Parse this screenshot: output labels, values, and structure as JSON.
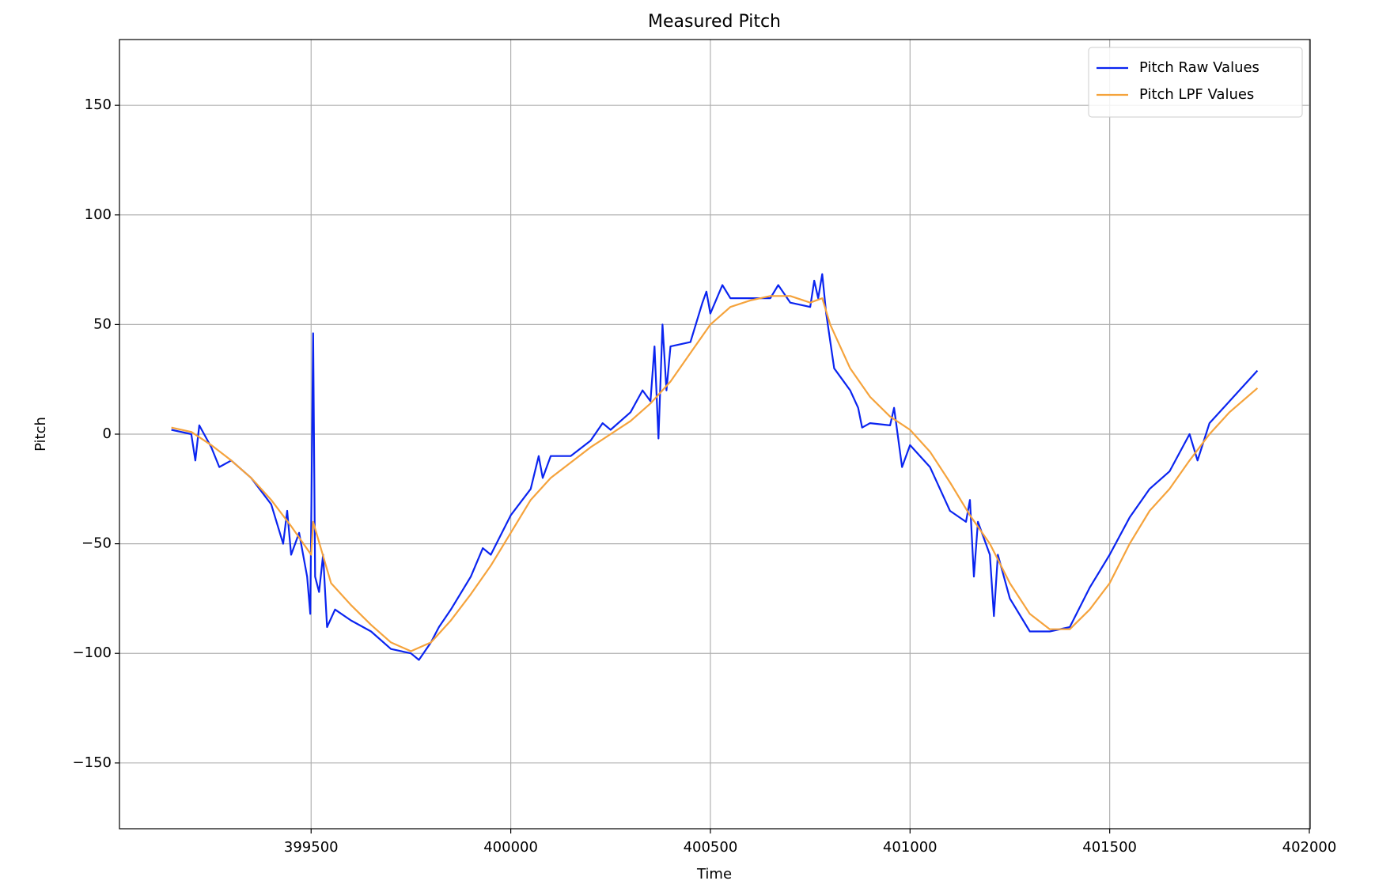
{
  "chart_data": {
    "type": "line",
    "title": "Measured Pitch",
    "x_label": "Time",
    "y_label": "Pitch",
    "xlim": [
      399020,
      402002
    ],
    "ylim": [
      -180,
      180
    ],
    "xticks": [
      399500,
      400000,
      400500,
      401000,
      401500,
      402000
    ],
    "yticks": [
      {
        "value": -150,
        "label": "−150"
      },
      {
        "value": -100,
        "label": "−100"
      },
      {
        "value": -50,
        "label": "−50"
      },
      0,
      50,
      100,
      150
    ],
    "grid": true,
    "legend": "upper right",
    "series": [
      {
        "name": "Pitch Raw Values",
        "color": "#0a24f0",
        "x": [
          399150,
          399200,
          399210,
          399220,
          399250,
          399270,
          399300,
          399350,
          399400,
          399430,
          399440,
          399450,
          399470,
          399490,
          399498,
          399505,
          399510,
          399520,
          399530,
          399540,
          399560,
          399600,
          399650,
          399700,
          399750,
          399770,
          399800,
          399820,
          399850,
          399900,
          399930,
          399950,
          400000,
          400050,
          400070,
          400080,
          400100,
          400150,
          400200,
          400230,
          400250,
          400300,
          400330,
          400350,
          400360,
          400370,
          400380,
          400390,
          400400,
          400450,
          400480,
          400490,
          400500,
          400530,
          400550,
          400600,
          400650,
          400670,
          400700,
          400750,
          400760,
          400770,
          400780,
          400790,
          400810,
          400830,
          400850,
          400870,
          400880,
          400900,
          400950,
          400960,
          400980,
          401000,
          401050,
          401100,
          401140,
          401150,
          401160,
          401170,
          401200,
          401210,
          401220,
          401250,
          401300,
          401350,
          401400,
          401450,
          401500,
          401550,
          401600,
          401650,
          401700,
          401720,
          401750,
          401800,
          401870
        ],
        "values": [
          2,
          0,
          -12,
          4,
          -6,
          -15,
          -12,
          -20,
          -32,
          -50,
          -35,
          -55,
          -45,
          -65,
          -82,
          46,
          -65,
          -72,
          -55,
          -88,
          -80,
          -85,
          -90,
          -98,
          -100,
          -103,
          -95,
          -88,
          -80,
          -65,
          -52,
          -55,
          -37,
          -25,
          -10,
          -20,
          -10,
          -10,
          -3,
          5,
          2,
          10,
          20,
          15,
          40,
          -2,
          50,
          20,
          40,
          42,
          60,
          65,
          55,
          68,
          62,
          62,
          62,
          68,
          60,
          58,
          70,
          62,
          73,
          55,
          30,
          25,
          20,
          12,
          3,
          5,
          4,
          12,
          -15,
          -5,
          -15,
          -35,
          -40,
          -30,
          -65,
          -40,
          -55,
          -83,
          -55,
          -75,
          -90,
          -90,
          -88,
          -70,
          -55,
          -38,
          -25,
          -17,
          0,
          -12,
          5,
          15,
          29
        ]
      },
      {
        "name": "Pitch LPF Values",
        "color": "#f5a33c",
        "x": [
          399150,
          399200,
          399250,
          399300,
          399350,
          399400,
          399450,
          399500,
          399505,
          399550,
          399600,
          399650,
          399700,
          399750,
          399800,
          399850,
          399900,
          399950,
          400000,
          400050,
          400100,
          400150,
          400200,
          400250,
          400300,
          400350,
          400400,
          400450,
          400500,
          400550,
          400600,
          400650,
          400700,
          400750,
          400780,
          400800,
          400850,
          400900,
          400950,
          401000,
          401050,
          401100,
          401150,
          401200,
          401250,
          401300,
          401350,
          401400,
          401450,
          401500,
          401550,
          401600,
          401650,
          401700,
          401750,
          401800,
          401870
        ],
        "values": [
          3,
          1,
          -5,
          -12,
          -20,
          -30,
          -42,
          -55,
          -40,
          -68,
          -78,
          -87,
          -95,
          -99,
          -95,
          -85,
          -73,
          -60,
          -45,
          -30,
          -20,
          -13,
          -6,
          0,
          6,
          14,
          24,
          37,
          50,
          58,
          61,
          63,
          63,
          60,
          62,
          50,
          30,
          17,
          8,
          2,
          -8,
          -22,
          -37,
          -50,
          -68,
          -82,
          -89,
          -89,
          -80,
          -68,
          -50,
          -35,
          -25,
          -12,
          0,
          10,
          21
        ]
      }
    ]
  }
}
